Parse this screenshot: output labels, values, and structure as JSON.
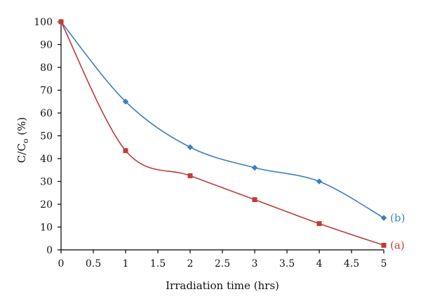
{
  "chart_data": {
    "type": "line",
    "title": "",
    "xlabel": "Irradiation time (hrs)",
    "ylabel": {
      "main": "C/C",
      "subscript": "o",
      "unit": " (%)"
    },
    "xlim": [
      0,
      5
    ],
    "ylim": [
      0,
      100
    ],
    "xticks": [
      "0",
      "0.5",
      "1",
      "1.5",
      "2",
      "2.5",
      "3",
      "3.5",
      "4",
      "4.5",
      "5"
    ],
    "yticks": [
      "0",
      "10",
      "20",
      "30",
      "40",
      "50",
      "60",
      "70",
      "80",
      "90",
      "100"
    ],
    "grid": false,
    "legend": "none",
    "series": [
      {
        "name": "(b)",
        "color": "#3b7fbf",
        "marker": "diamond",
        "x": [
          0,
          1,
          2,
          3,
          4,
          5
        ],
        "y": [
          100,
          65,
          45,
          36,
          30,
          14
        ]
      },
      {
        "name": "(a)",
        "color": "#c23a3a",
        "marker": "square",
        "x": [
          0,
          1,
          2,
          3,
          4,
          5
        ],
        "y": [
          100,
          43.5,
          32.5,
          22,
          11.5,
          2
        ]
      }
    ]
  }
}
